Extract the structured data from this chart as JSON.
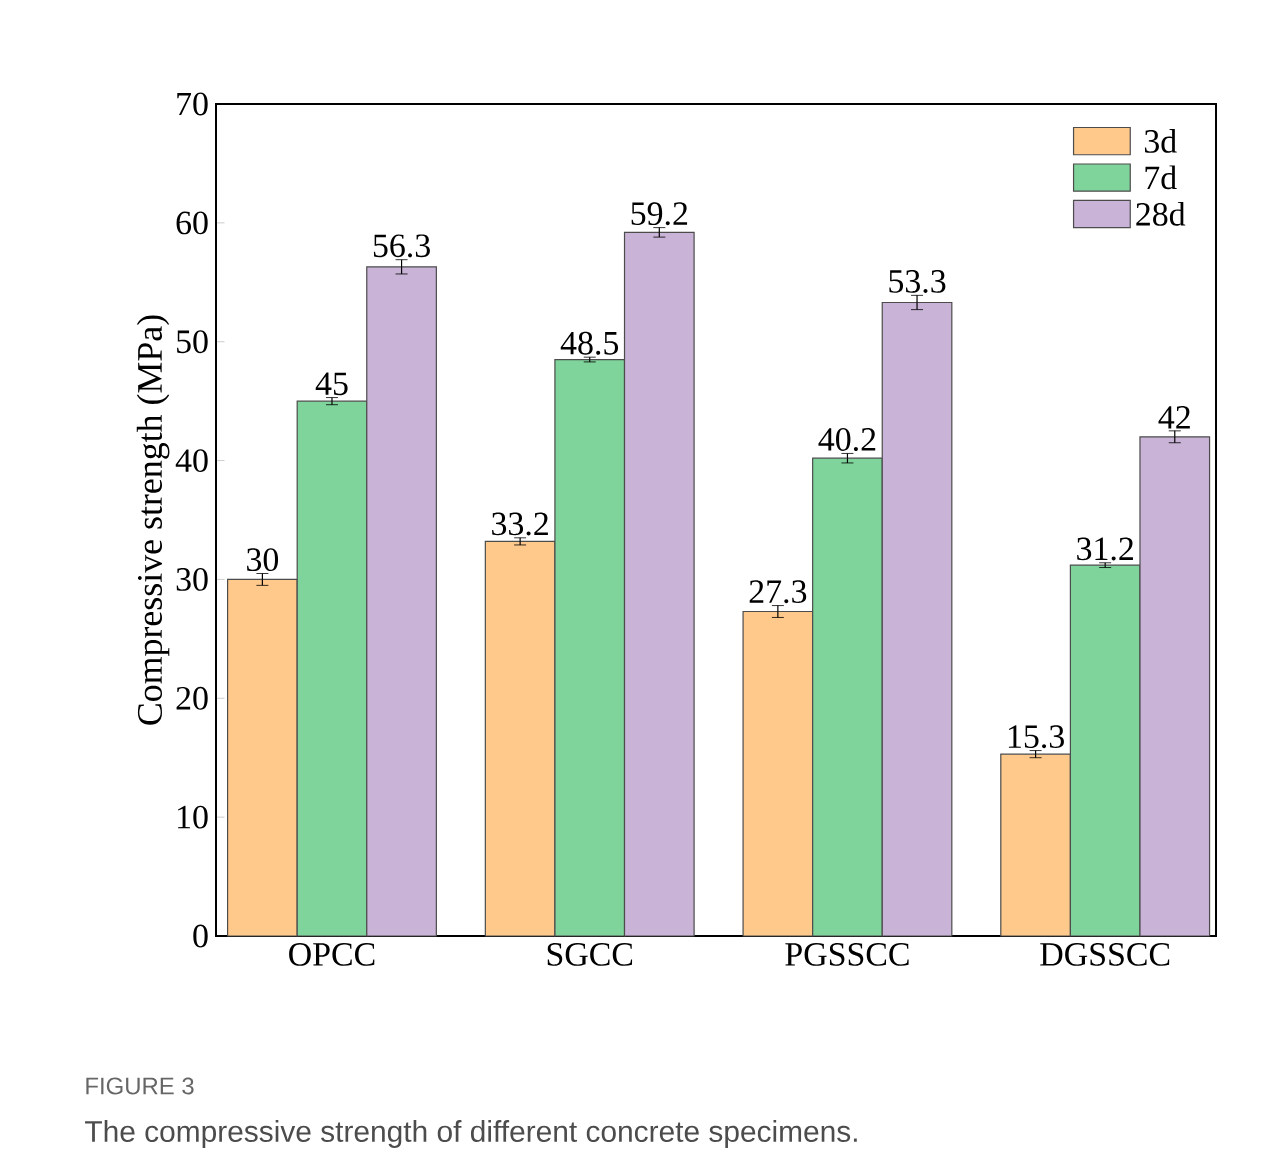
{
  "chart_data": {
    "type": "bar",
    "ylabel": "Compressive strength (MPa)",
    "categories": [
      "OPCC",
      "SGCC",
      "PGSSCC",
      "DGSSCC"
    ],
    "series": [
      {
        "name": "3d",
        "color": "#ffc98b",
        "values": [
          30,
          33.2,
          27.3,
          15.3
        ],
        "errors": [
          0.5,
          0.3,
          0.5,
          0.3
        ]
      },
      {
        "name": "7d",
        "color": "#7fd49b",
        "values": [
          45,
          48.5,
          40.2,
          31.2
        ],
        "errors": [
          0.3,
          0.2,
          0.4,
          0.2
        ]
      },
      {
        "name": "28d",
        "color": "#c9b3d6",
        "values": [
          56.3,
          59.2,
          53.3,
          42
        ],
        "errors": [
          0.6,
          0.4,
          0.6,
          0.5
        ]
      }
    ],
    "ylim": [
      0,
      70
    ],
    "yticks": [
      0,
      10,
      20,
      30,
      40,
      50,
      60,
      70
    ],
    "data_labels": true,
    "legend": "top right",
    "grid": false,
    "annotations": [
      "FIGURE 3",
      "The compressive strength of different concrete specimens."
    ]
  }
}
